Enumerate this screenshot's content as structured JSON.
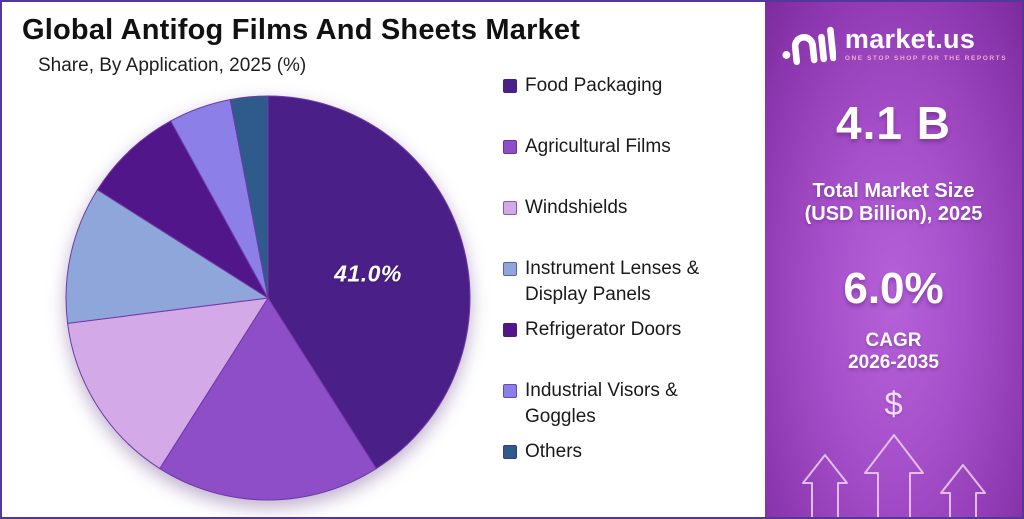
{
  "header": {
    "title": "Global Antifog Films And Sheets Market",
    "subtitle": "Share, By Application, 2025 (%)"
  },
  "chart_data": {
    "type": "pie",
    "title": "Global Antifog Films And Sheets Market",
    "subtitle": "Share, By Application, 2025 (%)",
    "unit": "%",
    "direction": "clockwise",
    "start_angle": "12-o-clock",
    "categories": [
      "Food Packaging",
      "Agricultural Films",
      "Windshields",
      "Instrument Lenses & Display Panels",
      "Refrigerator Doors",
      "Industrial Visors & Goggles",
      "Others"
    ],
    "values": [
      41.0,
      18.0,
      14.0,
      11.0,
      8.0,
      5.0,
      3.0
    ],
    "colors": [
      "#4A1F87",
      "#8E4EC8",
      "#D4A9E8",
      "#8FA6DB",
      "#51168A",
      "#8C7FE8",
      "#2E5B8C"
    ],
    "data_labels": [
      "41.0%",
      "",
      "",
      "",
      "",
      "",
      ""
    ],
    "legend_position": "right"
  },
  "legend": {
    "items": [
      {
        "label": "Food Packaging",
        "color": "#4A1F87"
      },
      {
        "label": "Agricultural Films",
        "color": "#8E4EC8"
      },
      {
        "label": "Windshields",
        "color": "#D4A9E8"
      },
      {
        "label": "Instrument Lenses &\nDisplay Panels",
        "color": "#8FA6DB"
      },
      {
        "label": "Refrigerator Doors",
        "color": "#51168A"
      },
      {
        "label": "Industrial Visors &\nGoggles",
        "color": "#8C7FE8"
      },
      {
        "label": "Others",
        "color": "#2E5B8C"
      }
    ]
  },
  "sidebar": {
    "brand": {
      "name": "market.us",
      "tagline": "ONE STOP SHOP FOR THE REPORTS"
    },
    "market_size_value": "4.1 B",
    "market_size_label_line1": "Total Market Size",
    "market_size_label_line2": "(USD Billion), 2025",
    "cagr_value": "6.0%",
    "cagr_label": "CAGR",
    "cagr_period": "2026-2035",
    "dollar_symbol": "$",
    "accent_colors": {
      "panel_gradient_center": "#B561D8",
      "panel_gradient_edge": "#7C2B9E",
      "border": "#54379B",
      "tagline_pink": "#F0A9CE"
    }
  }
}
